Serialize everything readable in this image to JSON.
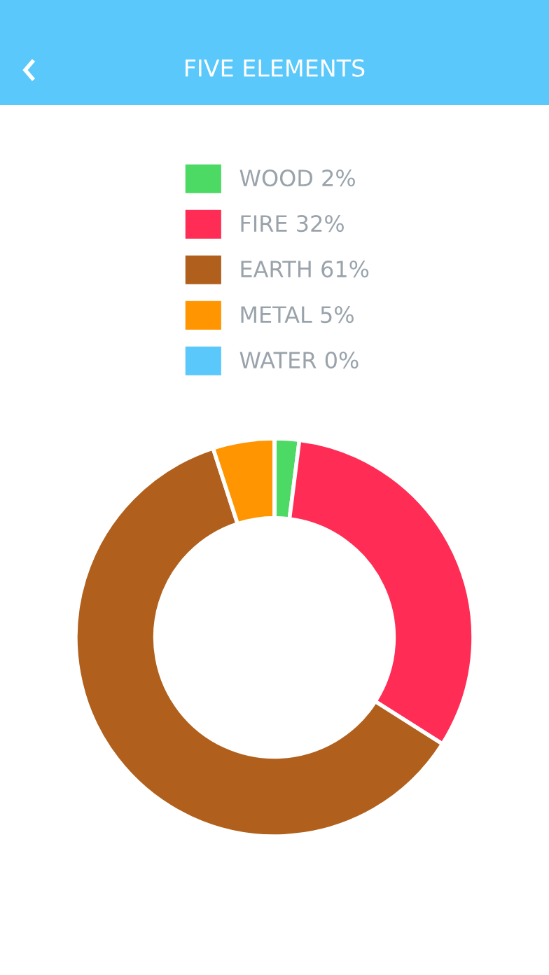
{
  "chart_data": {
    "type": "donut",
    "title": "FIVE ELEMENTS",
    "categories": [
      "WOOD 2%",
      "FIRE 32%",
      "EARTH 61%",
      "METAL 5%",
      "WATER 0%"
    ],
    "values": [
      2,
      32,
      61,
      5,
      0
    ],
    "colors": [
      "#4cd964",
      "#ff2d55",
      "#b0601c",
      "#ff9500",
      "#5ac8fa"
    ],
    "legend": "top"
  }
}
